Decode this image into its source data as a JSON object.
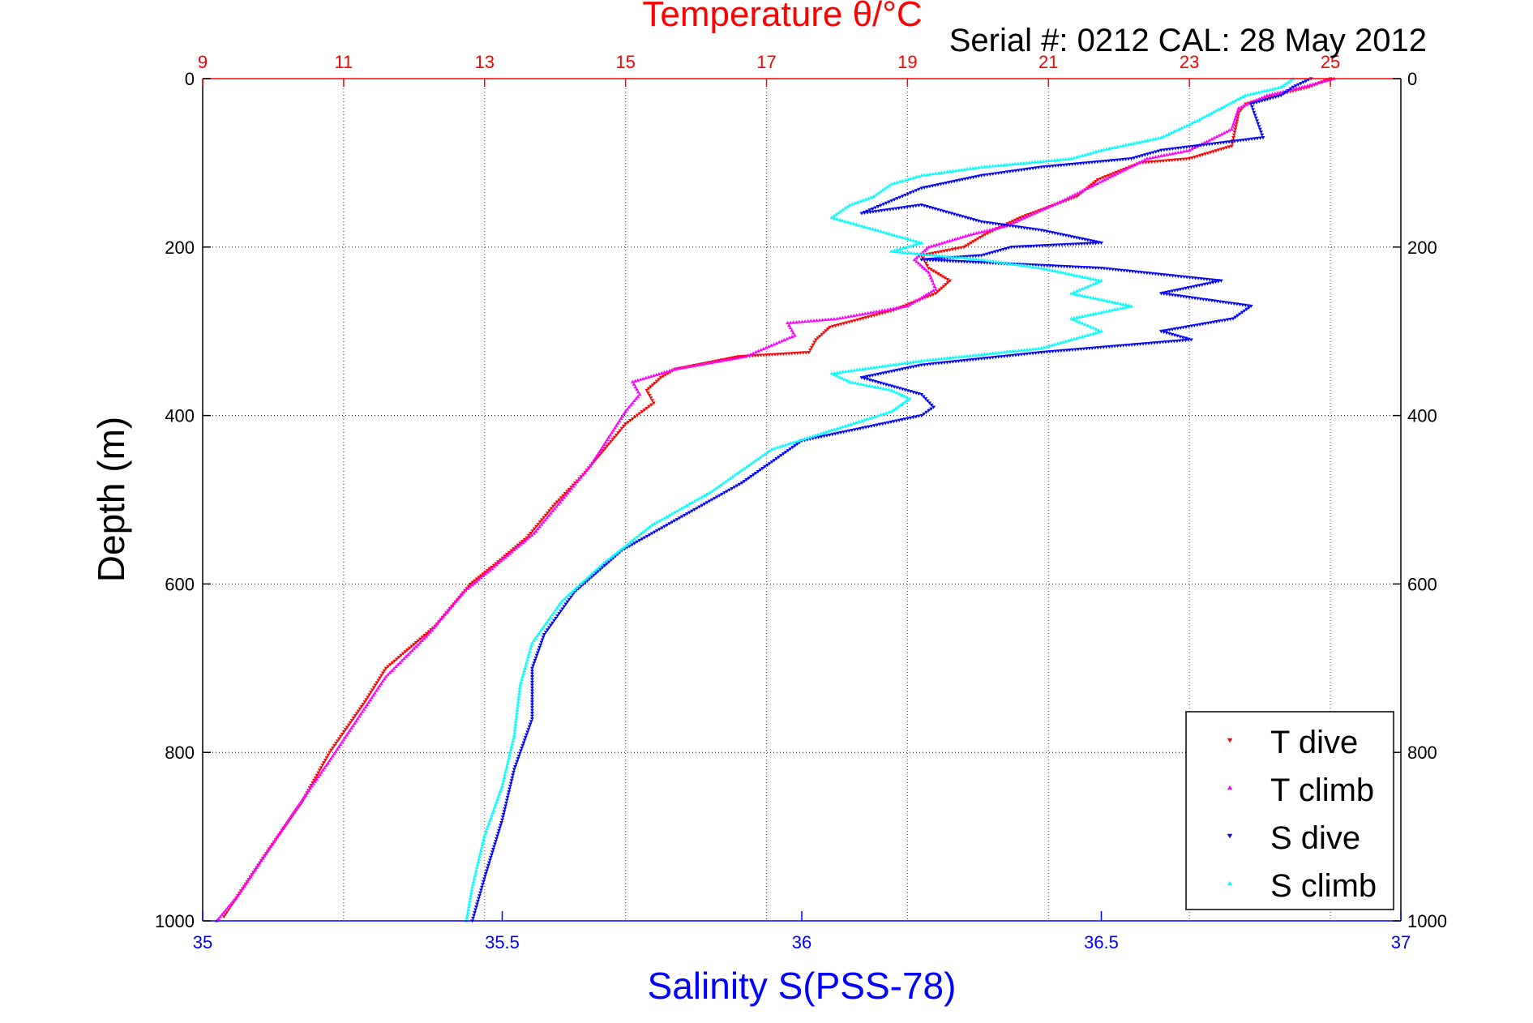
{
  "chart_data": {
    "type": "scatter",
    "title": "Temperature θ/°C",
    "subtitle": "Serial #: 0212  CAL: 28 May 2012",
    "top_axis": {
      "label": "Temperature θ/°C",
      "range": [
        9,
        26
      ],
      "ticks": [
        9,
        11,
        13,
        15,
        17,
        19,
        21,
        23,
        25
      ],
      "tick_labels": [
        "9",
        "11",
        "13",
        "15",
        "17",
        "19",
        "21",
        "23",
        "25"
      ],
      "grid": true
    },
    "bottom_axis": {
      "label": "Salinity S(PSS-78)",
      "range": [
        35,
        37
      ],
      "ticks": [
        35,
        35.5,
        36,
        36.5,
        37
      ],
      "tick_labels": [
        "35",
        "35.5",
        "36",
        "36.5",
        "37"
      ],
      "grid": false
    },
    "y_axis": {
      "label": "Depth (m)",
      "range": [
        0,
        1000
      ],
      "reversed": true,
      "ticks": [
        0,
        200,
        400,
        600,
        800,
        1000
      ],
      "tick_labels": [
        "0",
        "200",
        "400",
        "600",
        "800",
        "1000"
      ],
      "grid": true
    },
    "legend_position": "bottom-right",
    "series": [
      {
        "name": "T dive",
        "axis": "temperature",
        "color": "#ff0000",
        "marker": "triangle-down",
        "points": [
          [
            25.0,
            0
          ],
          [
            24.7,
            10
          ],
          [
            24.2,
            20
          ],
          [
            23.8,
            30
          ],
          [
            23.7,
            40
          ],
          [
            23.65,
            60
          ],
          [
            23.6,
            80
          ],
          [
            23.0,
            95
          ],
          [
            22.3,
            100
          ],
          [
            21.7,
            120
          ],
          [
            21.4,
            140
          ],
          [
            20.6,
            165
          ],
          [
            20.1,
            185
          ],
          [
            19.8,
            200
          ],
          [
            19.2,
            210
          ],
          [
            19.3,
            225
          ],
          [
            19.6,
            240
          ],
          [
            19.4,
            255
          ],
          [
            18.8,
            275
          ],
          [
            17.9,
            295
          ],
          [
            17.7,
            310
          ],
          [
            17.6,
            325
          ],
          [
            16.6,
            330
          ],
          [
            15.7,
            345
          ],
          [
            15.5,
            355
          ],
          [
            15.3,
            370
          ],
          [
            15.4,
            385
          ],
          [
            15.0,
            410
          ],
          [
            14.4,
            470
          ],
          [
            14.0,
            505
          ],
          [
            13.6,
            545
          ],
          [
            13.1,
            580
          ],
          [
            12.8,
            600
          ],
          [
            12.3,
            650
          ],
          [
            11.6,
            700
          ],
          [
            11.3,
            740
          ],
          [
            10.8,
            800
          ],
          [
            10.4,
            860
          ],
          [
            9.9,
            920
          ],
          [
            9.5,
            970
          ],
          [
            9.3,
            995
          ]
        ]
      },
      {
        "name": "T climb",
        "axis": "temperature",
        "color": "#ff00ff",
        "marker": "triangle-up",
        "points": [
          [
            25.05,
            0
          ],
          [
            24.6,
            10
          ],
          [
            24.1,
            20
          ],
          [
            23.7,
            35
          ],
          [
            23.6,
            60
          ],
          [
            23.0,
            85
          ],
          [
            22.4,
            95
          ],
          [
            21.8,
            120
          ],
          [
            21.2,
            145
          ],
          [
            20.4,
            175
          ],
          [
            19.9,
            185
          ],
          [
            19.3,
            200
          ],
          [
            19.1,
            215
          ],
          [
            19.3,
            230
          ],
          [
            19.4,
            250
          ],
          [
            19.0,
            270
          ],
          [
            18.0,
            285
          ],
          [
            17.3,
            290
          ],
          [
            17.4,
            305
          ],
          [
            16.7,
            330
          ],
          [
            15.7,
            345
          ],
          [
            15.1,
            360
          ],
          [
            15.2,
            375
          ],
          [
            15.0,
            395
          ],
          [
            14.5,
            460
          ],
          [
            14.1,
            500
          ],
          [
            13.7,
            540
          ],
          [
            13.2,
            575
          ],
          [
            12.7,
            610
          ],
          [
            12.2,
            660
          ],
          [
            11.6,
            710
          ],
          [
            11.2,
            760
          ],
          [
            10.8,
            810
          ],
          [
            10.3,
            870
          ],
          [
            9.9,
            920
          ],
          [
            9.5,
            970
          ],
          [
            9.2,
            1000
          ]
        ]
      },
      {
        "name": "S dive",
        "axis": "salinity",
        "color": "#0000ff",
        "marker": "triangle-down",
        "points": [
          [
            36.85,
            0
          ],
          [
            36.82,
            10
          ],
          [
            36.8,
            20
          ],
          [
            36.75,
            30
          ],
          [
            36.76,
            50
          ],
          [
            36.77,
            70
          ],
          [
            36.6,
            85
          ],
          [
            36.55,
            95
          ],
          [
            36.4,
            105
          ],
          [
            36.3,
            115
          ],
          [
            36.2,
            130
          ],
          [
            36.15,
            145
          ],
          [
            36.1,
            160
          ],
          [
            36.2,
            150
          ],
          [
            36.3,
            170
          ],
          [
            36.4,
            180
          ],
          [
            36.5,
            195
          ],
          [
            36.35,
            200
          ],
          [
            36.3,
            210
          ],
          [
            36.2,
            215
          ],
          [
            36.5,
            225
          ],
          [
            36.7,
            240
          ],
          [
            36.6,
            255
          ],
          [
            36.75,
            270
          ],
          [
            36.72,
            285
          ],
          [
            36.6,
            300
          ],
          [
            36.65,
            310
          ],
          [
            36.4,
            325
          ],
          [
            36.2,
            340
          ],
          [
            36.1,
            355
          ],
          [
            36.15,
            365
          ],
          [
            36.2,
            375
          ],
          [
            36.22,
            390
          ],
          [
            36.2,
            400
          ],
          [
            36.0,
            430
          ],
          [
            35.9,
            480
          ],
          [
            35.8,
            520
          ],
          [
            35.7,
            560
          ],
          [
            35.62,
            610
          ],
          [
            35.57,
            660
          ],
          [
            35.55,
            700
          ],
          [
            35.55,
            760
          ],
          [
            35.52,
            820
          ],
          [
            35.5,
            880
          ],
          [
            35.47,
            950
          ],
          [
            35.45,
            1000
          ]
        ]
      },
      {
        "name": "S climb",
        "axis": "salinity",
        "color": "#00ffff",
        "marker": "triangle-up",
        "points": [
          [
            36.82,
            0
          ],
          [
            36.8,
            10
          ],
          [
            36.74,
            20
          ],
          [
            36.7,
            35
          ],
          [
            36.66,
            50
          ],
          [
            36.6,
            70
          ],
          [
            36.5,
            85
          ],
          [
            36.45,
            95
          ],
          [
            36.3,
            105
          ],
          [
            36.2,
            115
          ],
          [
            36.15,
            125
          ],
          [
            36.12,
            140
          ],
          [
            36.08,
            150
          ],
          [
            36.05,
            165
          ],
          [
            36.1,
            175
          ],
          [
            36.15,
            185
          ],
          [
            36.2,
            195
          ],
          [
            36.15,
            205
          ],
          [
            36.3,
            215
          ],
          [
            36.4,
            225
          ],
          [
            36.5,
            240
          ],
          [
            36.45,
            255
          ],
          [
            36.55,
            270
          ],
          [
            36.45,
            285
          ],
          [
            36.5,
            300
          ],
          [
            36.4,
            320
          ],
          [
            36.2,
            335
          ],
          [
            36.05,
            350
          ],
          [
            36.08,
            360
          ],
          [
            36.15,
            370
          ],
          [
            36.18,
            380
          ],
          [
            36.15,
            395
          ],
          [
            35.95,
            440
          ],
          [
            35.85,
            490
          ],
          [
            35.75,
            530
          ],
          [
            35.67,
            575
          ],
          [
            35.6,
            620
          ],
          [
            35.55,
            670
          ],
          [
            35.53,
            720
          ],
          [
            35.52,
            780
          ],
          [
            35.5,
            840
          ],
          [
            35.47,
            900
          ],
          [
            35.45,
            960
          ],
          [
            35.44,
            1000
          ]
        ]
      }
    ]
  }
}
